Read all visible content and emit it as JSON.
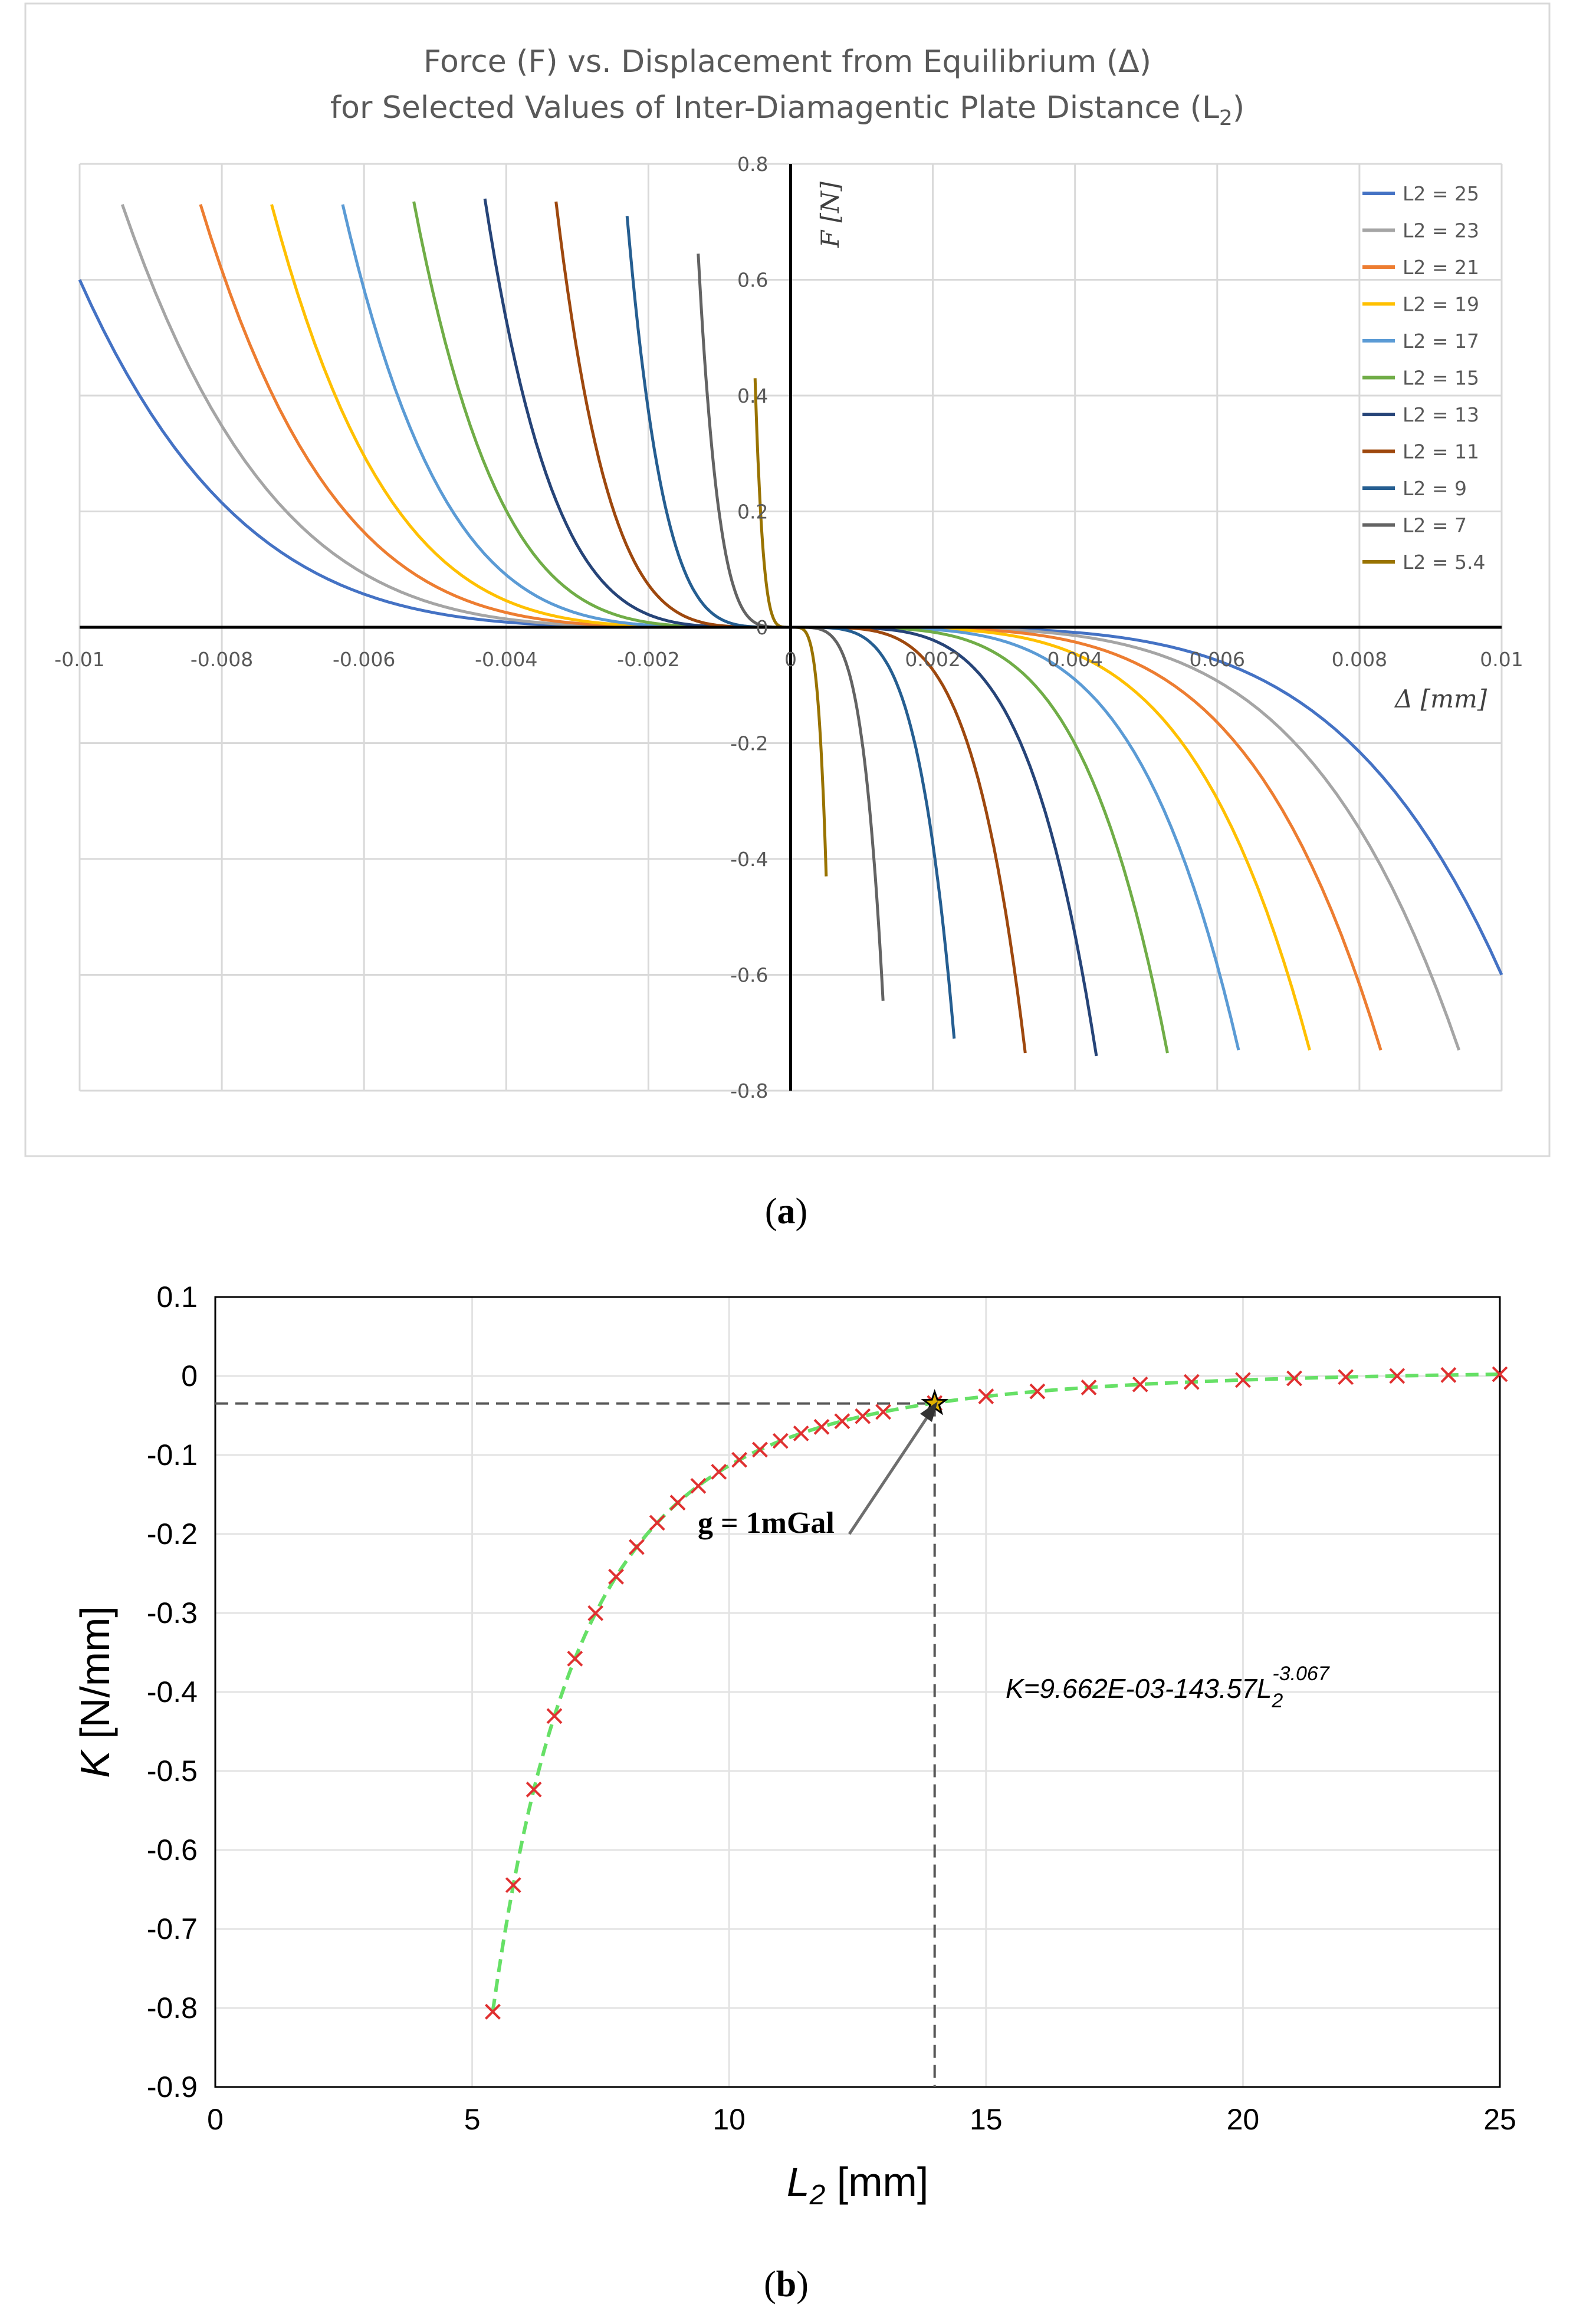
{
  "chart_data": [
    {
      "id": "a",
      "type": "line",
      "caption": "a",
      "title_line1": "Force (F) vs. Displacement from Equilibrium (Δ)",
      "title_line2_prefix": "for Selected Values of Inter-Diamagentic Plate Distance (L",
      "title_line2_sub": "2",
      "title_line2_suffix": ")",
      "xlabel": "Δ [mm]",
      "ylabel": "F [N]",
      "xlim": [
        -0.01,
        0.01
      ],
      "ylim": [
        -0.8,
        0.8
      ],
      "x_ticks": [
        -0.01,
        -0.008,
        -0.006,
        -0.004,
        -0.002,
        0,
        0.002,
        0.004,
        0.006,
        0.008,
        0.01
      ],
      "x_tick_labels": [
        "-0.01",
        "-0.008",
        "-0.006",
        "-0.004",
        "-0.002",
        "0",
        "0.002",
        "0.004",
        "0.006",
        "0.008",
        "0.01"
      ],
      "y_ticks": [
        -0.8,
        -0.6,
        -0.4,
        -0.2,
        0,
        0.2,
        0.4,
        0.6,
        0.8
      ],
      "y_tick_labels": [
        "-0.8",
        "-0.6",
        "-0.4",
        "-0.2",
        "0",
        "0.2",
        "0.4",
        "0.6",
        "0.8"
      ],
      "grid": true,
      "legend_position": "top-right",
      "series": [
        {
          "name": "L2 = 25",
          "color": "#4472c4",
          "delta_max": 0.01,
          "f_max": 0.6
        },
        {
          "name": "L2 = 23",
          "color": "#a5a5a5",
          "delta_max": 0.0094,
          "f_max": 0.73
        },
        {
          "name": "L2 = 21",
          "color": "#ed7d31",
          "delta_max": 0.0083,
          "f_max": 0.73
        },
        {
          "name": "L2 = 19",
          "color": "#ffc000",
          "delta_max": 0.0073,
          "f_max": 0.73
        },
        {
          "name": "L2 = 17",
          "color": "#5b9bd5",
          "delta_max": 0.0063,
          "f_max": 0.73
        },
        {
          "name": "L2 = 15",
          "color": "#70ad47",
          "delta_max": 0.0053,
          "f_max": 0.735
        },
        {
          "name": "L2 = 13",
          "color": "#264478",
          "delta_max": 0.0043,
          "f_max": 0.74
        },
        {
          "name": "L2 = 11",
          "color": "#9e480e",
          "delta_max": 0.0033,
          "f_max": 0.735
        },
        {
          "name": "L2 = 9",
          "color": "#255e91",
          "delta_max": 0.0023,
          "f_max": 0.71
        },
        {
          "name": "L2 = 7",
          "color": "#636363",
          "delta_max": 0.0013,
          "f_max": 0.645
        },
        {
          "name": "L2 = 5.4",
          "color": "#997300",
          "delta_max": 0.0005,
          "f_max": 0.43
        }
      ]
    },
    {
      "id": "b",
      "type": "scatter",
      "caption": "b",
      "xlabel_main": "L",
      "xlabel_sub": "2",
      "xlabel_unit": " [mm]",
      "ylabel_main": "K",
      "ylabel_unit": " [N/mm]",
      "xlim": [
        0,
        25
      ],
      "ylim": [
        -0.9,
        0.1
      ],
      "x_ticks": [
        0,
        5,
        10,
        15,
        20,
        25
      ],
      "x_tick_labels": [
        "0",
        "5",
        "10",
        "15",
        "20",
        "25"
      ],
      "y_ticks": [
        0.1,
        0,
        -0.1,
        -0.2,
        -0.3,
        -0.4,
        -0.5,
        -0.6,
        -0.7,
        -0.8,
        -0.9
      ],
      "y_tick_labels": [
        "0.1",
        "0",
        "-0.1",
        "-0.2",
        "-0.3",
        "-0.4",
        "-0.5",
        "-0.6",
        "-0.7",
        "-0.8",
        "-0.9"
      ],
      "grid": true,
      "fit": {
        "a": 0.009662,
        "b": 143.57,
        "c": 3.067,
        "color": "#66e066"
      },
      "equation_text": "K=9.662E-03-143.57L",
      "equation_sub": "2",
      "equation_sup": "-3.067",
      "marker_color": "#e03030",
      "points_x": [
        5.4,
        5.8,
        6.2,
        6.6,
        7.0,
        7.4,
        7.8,
        8.2,
        8.6,
        9.0,
        9.4,
        9.8,
        10.2,
        10.6,
        11.0,
        11.4,
        11.8,
        12.2,
        12.6,
        13.0,
        14.0,
        15,
        16,
        17,
        18,
        19,
        20,
        21,
        22,
        23,
        24,
        25
      ],
      "highlight": {
        "x": 14.0,
        "y": -0.0348,
        "label": "g = 1mGal",
        "color": "#e0b000"
      }
    }
  ]
}
